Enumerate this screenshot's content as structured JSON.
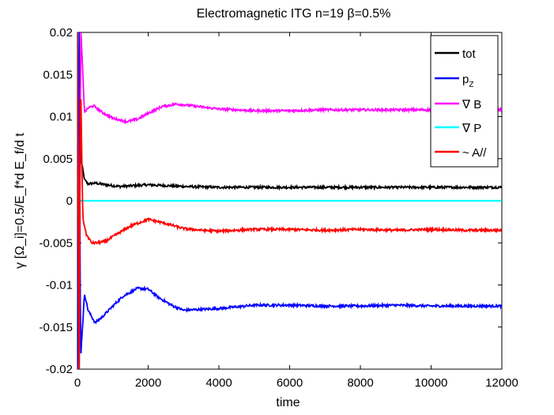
{
  "chart_data": {
    "type": "line",
    "title": "Electromagnetic ITG n=19 β=0.5%",
    "xlabel": "time",
    "ylabel": "γ [Ω_i]=0.5/E_f*d E_f/d t",
    "xlim": [
      0,
      12000
    ],
    "ylim": [
      -0.02,
      0.02
    ],
    "xticks": [
      0,
      2000,
      4000,
      6000,
      8000,
      10000,
      12000
    ],
    "xtick_labels": [
      "0",
      "2000",
      "4000",
      "6000",
      "8000",
      "10000",
      "12000"
    ],
    "yticks": [
      -0.02,
      -0.015,
      -0.01,
      -0.005,
      0,
      0.005,
      0.01,
      0.015,
      0.02
    ],
    "ytick_labels": [
      "-0.02",
      "-0.015",
      "-0.01",
      "-0.005",
      "0",
      "0.005",
      "0.01",
      "0.015",
      "0.02"
    ],
    "grid": false,
    "legend_position": "top-right",
    "series": [
      {
        "name": "tot",
        "color": "#000000",
        "x": [
          100,
          200,
          300,
          500,
          800,
          1200,
          1600,
          2000,
          2500,
          3000,
          4000,
          5000,
          6000,
          7000,
          8000,
          9000,
          10000,
          11000,
          12000
        ],
        "y": [
          0.005,
          0.0025,
          0.002,
          0.0021,
          0.0019,
          0.0017,
          0.0018,
          0.0019,
          0.0018,
          0.0017,
          0.0016,
          0.0016,
          0.0016,
          0.0016,
          0.0016,
          0.0016,
          0.0016,
          0.0016,
          0.0016
        ]
      },
      {
        "name": "p_Z",
        "color": "#0000ff",
        "x": [
          100,
          200,
          300,
          500,
          700,
          1000,
          1300,
          1700,
          2000,
          2300,
          2700,
          3000,
          4000,
          5000,
          6000,
          7000,
          8000,
          9000,
          10000,
          11000,
          12000
        ],
        "y": [
          -0.018,
          -0.011,
          -0.013,
          -0.0145,
          -0.0138,
          -0.0125,
          -0.0113,
          -0.0104,
          -0.0105,
          -0.0115,
          -0.0125,
          -0.013,
          -0.0128,
          -0.0124,
          -0.0124,
          -0.0125,
          -0.0125,
          -0.0124,
          -0.0125,
          -0.0125,
          -0.0125
        ]
      },
      {
        "name": "∇ B",
        "color": "#ff00ff",
        "x": [
          100,
          200,
          300,
          450,
          700,
          1000,
          1400,
          1700,
          2000,
          2400,
          2800,
          3200,
          4000,
          5000,
          6000,
          7000,
          8000,
          9000,
          10000,
          11000,
          12000
        ],
        "y": [
          0.02,
          0.0105,
          0.011,
          0.0113,
          0.0105,
          0.0098,
          0.0094,
          0.0097,
          0.0104,
          0.0112,
          0.0115,
          0.0113,
          0.0109,
          0.0107,
          0.0107,
          0.0108,
          0.0108,
          0.0108,
          0.0108,
          0.0108,
          0.0108
        ]
      },
      {
        "name": "∇ P",
        "color": "#00ffff",
        "x": [
          100,
          12000
        ],
        "y": [
          0,
          0
        ]
      },
      {
        "name": "~ A//",
        "color": "#ff0000",
        "x": [
          100,
          150,
          250,
          400,
          550,
          800,
          1100,
          1500,
          2000,
          2500,
          3000,
          3500,
          4000,
          5000,
          6000,
          7000,
          8000,
          9000,
          10000,
          11000,
          12000
        ],
        "y": [
          0.012,
          -0.002,
          -0.004,
          -0.005,
          -0.005,
          -0.0048,
          -0.004,
          -0.003,
          -0.0022,
          -0.0027,
          -0.0033,
          -0.0035,
          -0.0036,
          -0.0034,
          -0.0034,
          -0.0035,
          -0.0034,
          -0.0035,
          -0.0034,
          -0.0035,
          -0.0035
        ]
      }
    ]
  }
}
